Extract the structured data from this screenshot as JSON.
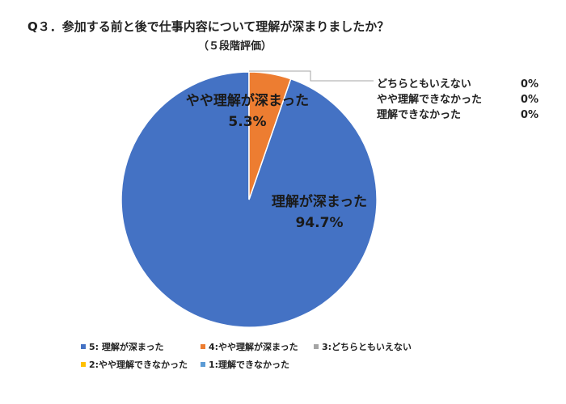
{
  "title": "Q３．参加する前と後で仕事内容について理解が深まりましたか？",
  "subtitle": "（５段階評価）",
  "zero_labels": [
    {
      "label": "どちらともいえない",
      "value": "0%"
    },
    {
      "label": "やや理解できなかった",
      "value": "0%"
    },
    {
      "label": "理解できなかった",
      "value": "0%"
    }
  ],
  "chart_data": {
    "type": "pie",
    "slices": [
      {
        "name": "5: 理解が深まった",
        "label": "理解が深まった",
        "value": 94.7,
        "value_label": "94.7%",
        "color": "#4472C4"
      },
      {
        "name": "4:やや理解が深まった",
        "label": "やや理解が深まった",
        "value": 5.3,
        "value_label": "5.3%",
        "color": "#ED7D31"
      },
      {
        "name": "3:どちらともいえない",
        "label": "どちらともいえない",
        "value": 0,
        "value_label": "0%",
        "color": "#A5A5A5"
      },
      {
        "name": "2:やや理解できなかった",
        "label": "やや理解できなかった",
        "value": 0,
        "value_label": "0%",
        "color": "#FFC000"
      },
      {
        "name": "1:理解できなかった",
        "label": "理解できなかった",
        "value": 0,
        "value_label": "0%",
        "color": "#5B9BD5"
      }
    ],
    "legend_position": "bottom"
  }
}
